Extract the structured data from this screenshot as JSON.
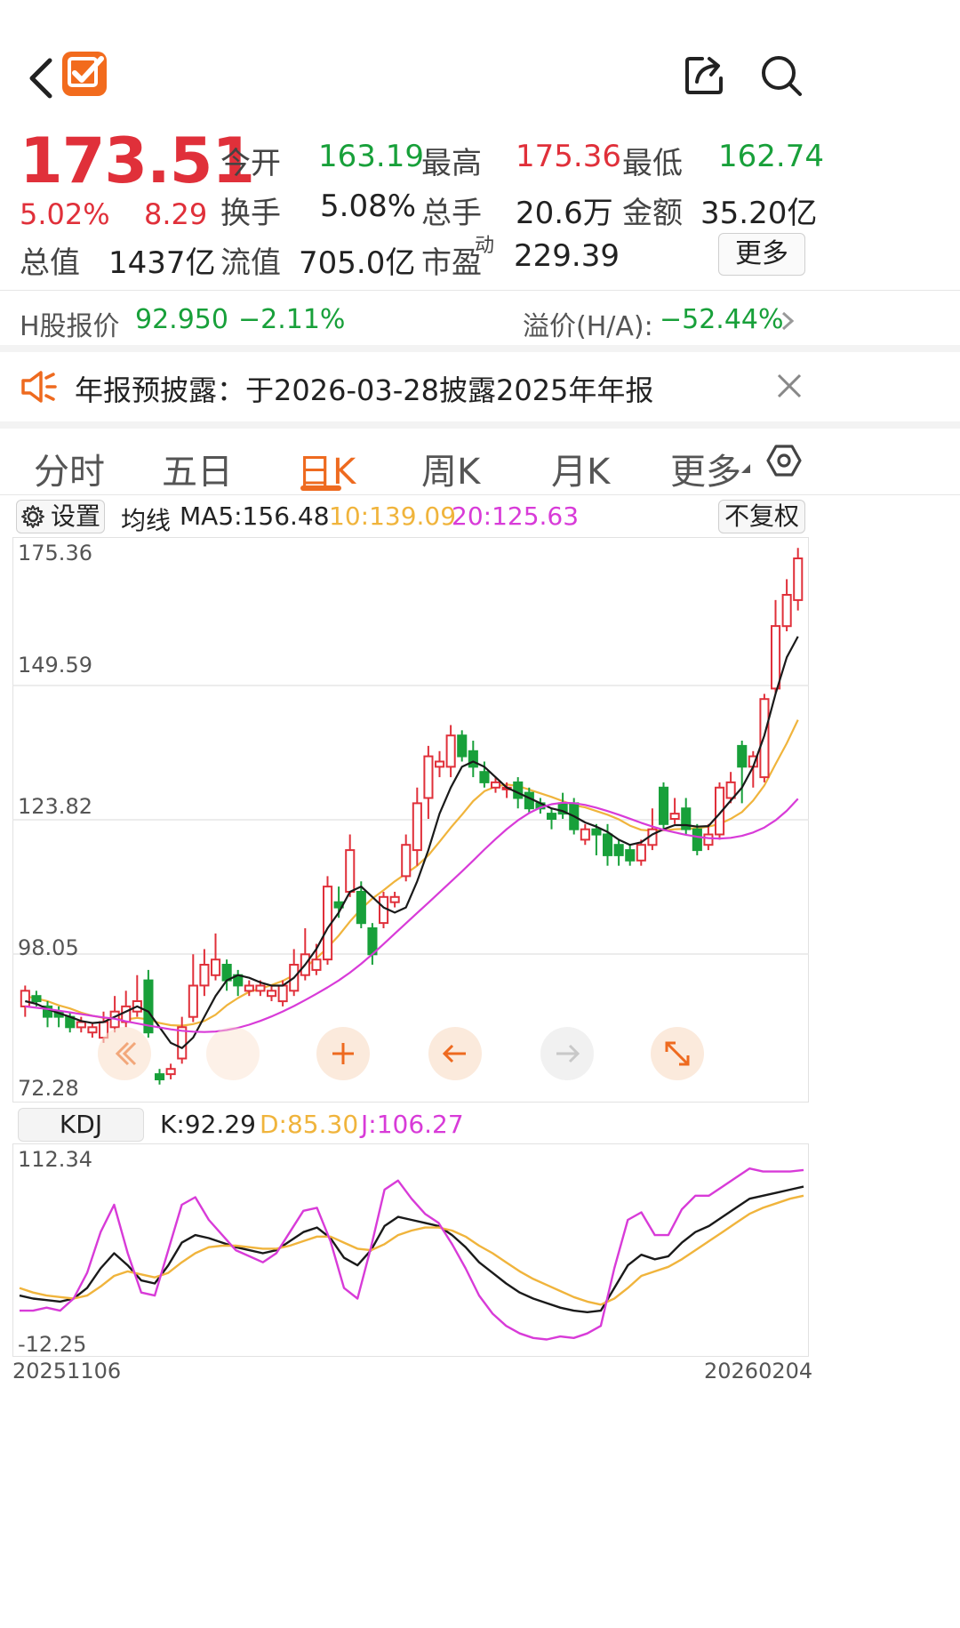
{
  "header": {
    "back_icon": "chevron-left-icon",
    "app_icon": "orange-check-logo",
    "share_icon": "share-icon",
    "search_icon": "search-icon"
  },
  "quote": {
    "price": "173.51",
    "change_pct": "5.02%",
    "change_amt": "8.29",
    "stats": [
      {
        "label": "今开",
        "value": "163.19",
        "color": "green"
      },
      {
        "label": "最高",
        "value": "175.36",
        "color": "red"
      },
      {
        "label": "最低",
        "value": "162.74",
        "color": "green"
      },
      {
        "label": "换手",
        "value": "5.08%",
        "color": "dark"
      },
      {
        "label": "总手",
        "value": "20.6万",
        "color": "dark"
      },
      {
        "label": "金额",
        "value": "35.20亿",
        "color": "dark"
      },
      {
        "label": "总值",
        "value": "1437亿",
        "color": "dark"
      },
      {
        "label": "流值",
        "value": "705.0亿",
        "color": "dark"
      },
      {
        "label": "市盈",
        "sup": "动",
        "value": "229.39",
        "color": "dark"
      }
    ],
    "more_label": "更多"
  },
  "hshare": {
    "label": "H股报价",
    "price": "92.950",
    "change": "−2.11%",
    "premium_label": "溢价(H/A):",
    "premium_value": "−52.44%"
  },
  "notice": {
    "icon": "speaker-icon",
    "text": "年报预披露：于2026-03-28披露2025年年报",
    "close_icon": "close-icon"
  },
  "tabs": [
    "分时",
    "五日",
    "日K",
    "周K",
    "月K",
    "更多"
  ],
  "active_tab": "日K",
  "settings_icon": "hexagon-settings-icon",
  "ma_bar": {
    "settings_label": "设置",
    "ma_label": "均线",
    "ma5": "MA5:156.48",
    "ma10": "10:139.09",
    "ma20": "20:125.63",
    "adjust_label": "不复权"
  },
  "colors": {
    "up": "#e0303a",
    "down": "#18a03a",
    "ma5": "#1a1a1a",
    "ma10": "#f0b43c",
    "ma20": "#d83bd8",
    "accent": "#ee6a1f"
  },
  "kline_axis": [
    "175.36",
    "149.59",
    "123.82",
    "98.05",
    "72.28"
  ],
  "kdj": {
    "label": "KDJ",
    "k": "K:92.29",
    "d": "D:85.30",
    "j": "J:106.27",
    "axis_top": "112.34",
    "axis_bottom": "-12.25"
  },
  "dates": {
    "start": "20251106",
    "end": "20260204"
  },
  "chart_controls": [
    "expand-left-icon",
    "blank",
    "plus-icon",
    "arrow-left-icon",
    "arrow-right-icon",
    "fullscreen-icon"
  ],
  "chart_data": [
    {
      "type": "candlestick",
      "ylim": [
        72.28,
        175.36
      ],
      "candles": [
        {
          "o": 88,
          "c": 91,
          "h": 92,
          "l": 86
        },
        {
          "o": 90,
          "c": 89,
          "h": 91,
          "l": 88
        },
        {
          "o": 88,
          "c": 86,
          "h": 89,
          "l": 84
        },
        {
          "o": 87,
          "c": 86,
          "h": 88,
          "l": 84
        },
        {
          "o": 86,
          "c": 84,
          "h": 87,
          "l": 83
        },
        {
          "o": 84,
          "c": 85,
          "h": 86,
          "l": 83
        },
        {
          "o": 83,
          "c": 84,
          "h": 85,
          "l": 82
        },
        {
          "o": 82,
          "c": 85,
          "h": 87,
          "l": 81
        },
        {
          "o": 84,
          "c": 87,
          "h": 90,
          "l": 83
        },
        {
          "o": 85,
          "c": 88,
          "h": 91,
          "l": 84
        },
        {
          "o": 87,
          "c": 89,
          "h": 94,
          "l": 86
        },
        {
          "o": 93,
          "c": 83,
          "h": 95,
          "l": 82
        },
        {
          "o": 75,
          "c": 74,
          "h": 76,
          "l": 73
        },
        {
          "o": 75,
          "c": 76,
          "h": 77,
          "l": 74
        },
        {
          "o": 78,
          "c": 84,
          "h": 86,
          "l": 77
        },
        {
          "o": 86,
          "c": 92,
          "h": 98,
          "l": 85
        },
        {
          "o": 92,
          "c": 96,
          "h": 99,
          "l": 90
        },
        {
          "o": 94,
          "c": 97,
          "h": 102,
          "l": 93
        },
        {
          "o": 96,
          "c": 93,
          "h": 97,
          "l": 91
        },
        {
          "o": 94,
          "c": 92,
          "h": 95,
          "l": 90
        },
        {
          "o": 91,
          "c": 92,
          "h": 93,
          "l": 90
        },
        {
          "o": 91,
          "c": 92,
          "h": 93,
          "l": 90
        },
        {
          "o": 90,
          "c": 91,
          "h": 92,
          "l": 89
        },
        {
          "o": 89,
          "c": 92,
          "h": 93,
          "l": 88
        },
        {
          "o": 91,
          "c": 96,
          "h": 99,
          "l": 90
        },
        {
          "o": 94,
          "c": 98,
          "h": 103,
          "l": 93
        },
        {
          "o": 95,
          "c": 97,
          "h": 100,
          "l": 94
        },
        {
          "o": 97,
          "c": 111,
          "h": 113,
          "l": 96
        },
        {
          "o": 108,
          "c": 107,
          "h": 111,
          "l": 105
        },
        {
          "o": 110,
          "c": 118,
          "h": 121,
          "l": 109
        },
        {
          "o": 110,
          "c": 104,
          "h": 112,
          "l": 103
        },
        {
          "o": 103,
          "c": 98,
          "h": 104,
          "l": 96
        },
        {
          "o": 104,
          "c": 109,
          "h": 110,
          "l": 103
        },
        {
          "o": 108,
          "c": 109,
          "h": 110,
          "l": 107
        },
        {
          "o": 113,
          "c": 119,
          "h": 121,
          "l": 112
        },
        {
          "o": 118,
          "c": 127,
          "h": 130,
          "l": 115
        },
        {
          "o": 128,
          "c": 136,
          "h": 138,
          "l": 124
        },
        {
          "o": 134,
          "c": 135,
          "h": 137,
          "l": 132
        },
        {
          "o": 134,
          "c": 140,
          "h": 142,
          "l": 132
        },
        {
          "o": 140,
          "c": 136,
          "h": 141,
          "l": 135
        },
        {
          "o": 137,
          "c": 134,
          "h": 139,
          "l": 132
        },
        {
          "o": 133,
          "c": 131,
          "h": 135,
          "l": 130
        },
        {
          "o": 130,
          "c": 131,
          "h": 132,
          "l": 129
        },
        {
          "o": 130,
          "c": 130,
          "h": 131,
          "l": 128
        },
        {
          "o": 131,
          "c": 128,
          "h": 132,
          "l": 126
        },
        {
          "o": 129,
          "c": 126,
          "h": 130,
          "l": 125
        },
        {
          "o": 127,
          "c": 126,
          "h": 128,
          "l": 125
        },
        {
          "o": 125,
          "c": 124,
          "h": 126,
          "l": 122
        },
        {
          "o": 127,
          "c": 125,
          "h": 129,
          "l": 124
        },
        {
          "o": 127,
          "c": 122,
          "h": 128,
          "l": 121
        },
        {
          "o": 120,
          "c": 122,
          "h": 123,
          "l": 119
        },
        {
          "o": 122,
          "c": 121,
          "h": 123,
          "l": 117
        },
        {
          "o": 121,
          "c": 117,
          "h": 123,
          "l": 115
        },
        {
          "o": 119,
          "c": 117,
          "h": 120,
          "l": 115
        },
        {
          "o": 118,
          "c": 116,
          "h": 119,
          "l": 115
        },
        {
          "o": 116,
          "c": 119,
          "h": 120,
          "l": 115
        },
        {
          "o": 119,
          "c": 122,
          "h": 126,
          "l": 118
        },
        {
          "o": 130,
          "c": 123,
          "h": 131,
          "l": 122
        },
        {
          "o": 124,
          "c": 125,
          "h": 128,
          "l": 123
        },
        {
          "o": 126,
          "c": 122,
          "h": 128,
          "l": 121
        },
        {
          "o": 122,
          "c": 118,
          "h": 123,
          "l": 117
        },
        {
          "o": 119,
          "c": 121,
          "h": 123,
          "l": 118
        },
        {
          "o": 121,
          "c": 130,
          "h": 131,
          "l": 120
        },
        {
          "o": 128,
          "c": 131,
          "h": 133,
          "l": 127
        },
        {
          "o": 138,
          "c": 134,
          "h": 139,
          "l": 127
        },
        {
          "o": 134,
          "c": 136,
          "h": 137,
          "l": 130
        },
        {
          "o": 132,
          "c": 147,
          "h": 148,
          "l": 131
        },
        {
          "o": 149,
          "c": 161,
          "h": 166,
          "l": 148
        },
        {
          "o": 161,
          "c": 167,
          "h": 170,
          "l": 160
        },
        {
          "o": 166,
          "c": 174,
          "h": 176,
          "l": 164
        }
      ],
      "ma5": [
        89,
        88.5,
        87.5,
        86.7,
        86,
        85.2,
        84.8,
        85,
        86,
        87,
        88,
        87,
        84,
        81,
        80,
        82,
        86,
        90,
        93,
        94,
        93.5,
        92.6,
        92,
        92,
        93.5,
        96,
        99,
        103,
        106,
        110,
        111,
        109,
        107,
        106,
        107,
        112,
        118,
        125,
        130,
        134,
        135,
        134,
        132,
        130,
        129,
        128,
        127,
        126,
        125.5,
        124.5,
        123.3,
        122.5,
        121.5,
        120,
        119,
        119.5,
        121,
        122,
        122.8,
        122.8,
        122.5,
        122.6,
        125,
        127.5,
        130,
        134,
        140,
        148,
        155,
        159
      ],
      "ma10": [
        90,
        89.5,
        89,
        88.2,
        87.6,
        86.8,
        86.2,
        85.8,
        85.6,
        85.5,
        85.8,
        85.5,
        84.8,
        84.4,
        84.3,
        84.6,
        85.2,
        86.4,
        88.2,
        89.6,
        90.8,
        91.4,
        92.1,
        92.9,
        94,
        95.5,
        97.2,
        99.3,
        101.6,
        104.3,
        106.7,
        108.7,
        110.3,
        112,
        113.5,
        115,
        117,
        119.6,
        122.3,
        124.8,
        127.4,
        129.3,
        130.2,
        130.6,
        130.3,
        129.6,
        128.9,
        128.2,
        127.4,
        126.6,
        126.2,
        125.5,
        124.8,
        123.9,
        122.7,
        121.9,
        121.7,
        121.8,
        122,
        122.1,
        122.2,
        122.5,
        123,
        124,
        125.3,
        127.5,
        130.4,
        134.5,
        138.5,
        143
      ]
    },
    {
      "type": "line",
      "ylim": [
        -12.25,
        112.34
      ],
      "series": [
        {
          "name": "K",
          "values": [
            20,
            18,
            17,
            16,
            18,
            25,
            38,
            48,
            40,
            30,
            28,
            40,
            55,
            60,
            58,
            55,
            52,
            50,
            48,
            50,
            56,
            62,
            65,
            58,
            45,
            40,
            50,
            66,
            72,
            70,
            68,
            66,
            60,
            52,
            42,
            35,
            28,
            22,
            18,
            15,
            12,
            10,
            9,
            10,
            25,
            40,
            47,
            44,
            46,
            55,
            62,
            66,
            72,
            78,
            84,
            86,
            88,
            90,
            92
          ]
        },
        {
          "name": "D",
          "values": [
            25,
            22,
            20,
            19,
            18,
            20,
            26,
            33,
            36,
            34,
            32,
            35,
            42,
            48,
            52,
            53,
            53,
            52,
            51,
            51,
            53,
            56,
            59,
            59,
            55,
            51,
            50,
            54,
            60,
            63,
            65,
            65,
            63,
            59,
            53,
            48,
            42,
            36,
            31,
            27,
            23,
            19,
            16,
            14,
            18,
            25,
            33,
            36,
            39,
            44,
            50,
            56,
            62,
            68,
            74,
            78,
            81,
            84,
            86
          ]
        },
        {
          "name": "J",
          "values": [
            10,
            10,
            12,
            10,
            18,
            35,
            62,
            80,
            48,
            22,
            20,
            50,
            80,
            85,
            70,
            60,
            50,
            46,
            42,
            48,
            62,
            76,
            78,
            56,
            25,
            18,
            52,
            90,
            96,
            84,
            74,
            68,
            54,
            38,
            20,
            8,
            0,
            -5,
            -8,
            -9,
            -7,
            -8,
            -5,
            0,
            38,
            70,
            75,
            60,
            60,
            77,
            86,
            86,
            92,
            98,
            104,
            102,
            102,
            102,
            103
          ]
        }
      ]
    }
  ]
}
